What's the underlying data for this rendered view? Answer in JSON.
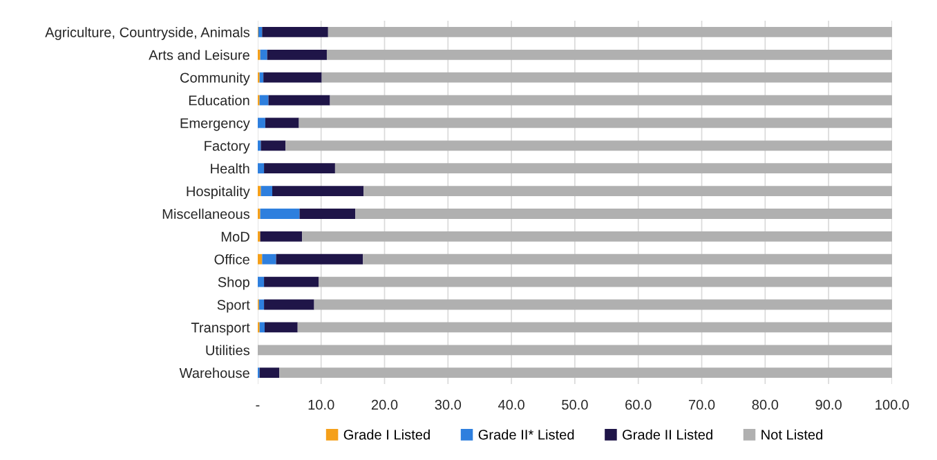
{
  "chart_data": {
    "type": "bar",
    "orientation": "horizontal",
    "stacked": true,
    "categories": [
      "Agriculture, Countryside, Animals",
      "Arts and Leisure",
      "Community",
      "Education",
      "Emergency",
      "Factory",
      "Health",
      "Hospitality",
      "Miscellaneous",
      "MoD",
      "Office",
      "Shop",
      "Sport",
      "Transport",
      "Utilities",
      "Warehouse"
    ],
    "series": [
      {
        "name": "Grade I Listed",
        "color": "#f5a01a",
        "values": [
          0.1,
          0.4,
          0.3,
          0.3,
          0,
          0,
          0,
          0.5,
          0.4,
          0.4,
          0.7,
          0,
          0.2,
          0.3,
          0,
          0
        ]
      },
      {
        "name": "Grade II* Listed",
        "color": "#2e7fde",
        "values": [
          0.6,
          1.1,
          0.6,
          1.4,
          1.2,
          0.5,
          1.0,
          1.8,
          6.2,
          0,
          2.2,
          1.0,
          0.8,
          0.8,
          0,
          0.3
        ]
      },
      {
        "name": "Grade II Listed",
        "color": "#1f1548",
        "values": [
          10.4,
          9.4,
          9.2,
          9.7,
          5.3,
          3.9,
          11.2,
          14.4,
          8.8,
          6.6,
          13.7,
          8.6,
          7.9,
          5.2,
          0,
          3.1
        ]
      },
      {
        "name": "Not Listed",
        "color": "#b0b0b0",
        "values": [
          88.9,
          89.1,
          89.9,
          88.6,
          93.5,
          95.6,
          87.8,
          83.3,
          84.6,
          93.0,
          83.4,
          90.4,
          91.1,
          93.7,
          100,
          96.6
        ]
      }
    ],
    "xlim": [
      0,
      100
    ],
    "xticks": [
      {
        "value": 0,
        "label": "-"
      },
      {
        "value": 10,
        "label": "10.0"
      },
      {
        "value": 20,
        "label": "20.0"
      },
      {
        "value": 30,
        "label": "30.0"
      },
      {
        "value": 40,
        "label": "40.0"
      },
      {
        "value": 50,
        "label": "50.0"
      },
      {
        "value": 60,
        "label": "60.0"
      },
      {
        "value": 70,
        "label": "70.0"
      },
      {
        "value": 80,
        "label": "80.0"
      },
      {
        "value": 90,
        "label": "90.0"
      },
      {
        "value": 100,
        "label": "100.0"
      }
    ],
    "grid": "x",
    "legend": "bottom"
  }
}
